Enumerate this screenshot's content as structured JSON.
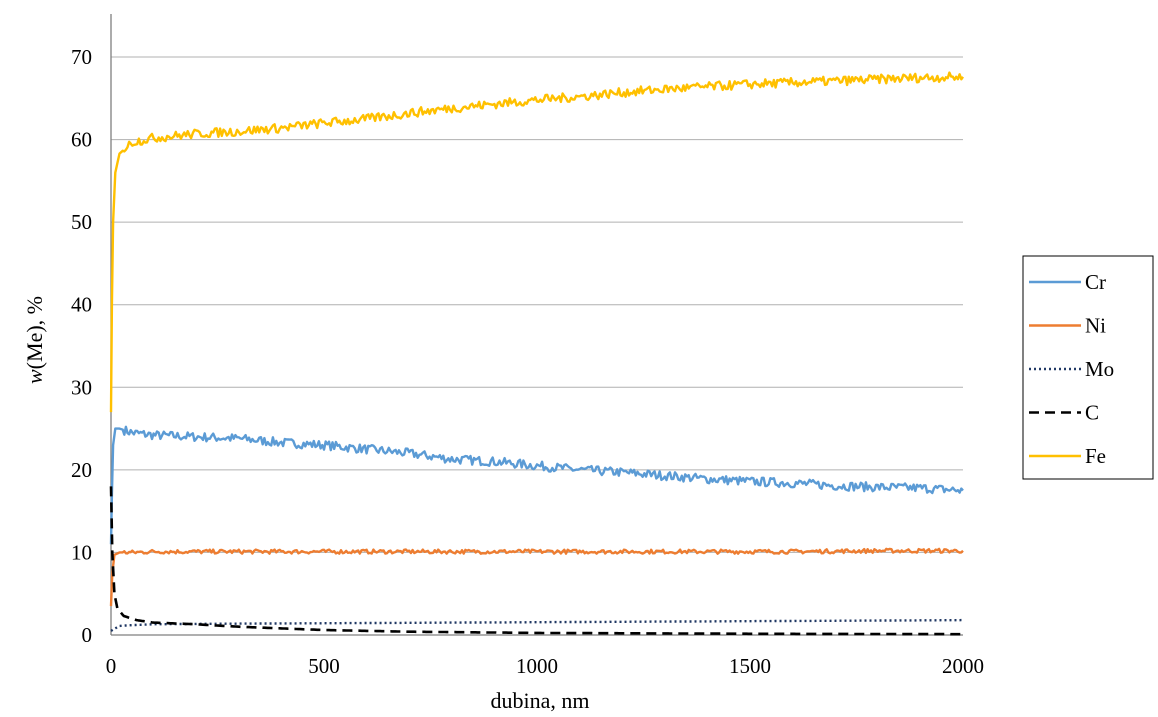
{
  "chart_data": {
    "type": "line",
    "title": "",
    "xlabel": "dubina, nm",
    "ylabel_italic": "w",
    "ylabel_rest": "(Me), %",
    "xlim": [
      0,
      2000
    ],
    "ylim": [
      0,
      70
    ],
    "x_ticks": [
      0,
      500,
      1000,
      1500,
      2000
    ],
    "y_ticks": [
      0,
      10,
      20,
      30,
      40,
      50,
      60,
      70
    ],
    "grid": "horizontal",
    "legend_position": "right",
    "series": [
      {
        "name": "Cr",
        "color": "#5b9bd5",
        "dash": "solid",
        "points": [
          [
            0,
            11
          ],
          [
            2,
            17
          ],
          [
            5,
            23
          ],
          [
            10,
            25
          ],
          [
            20,
            25
          ],
          [
            50,
            24.5
          ],
          [
            100,
            24.2
          ],
          [
            200,
            24
          ],
          [
            300,
            23.8
          ],
          [
            400,
            23.3
          ],
          [
            500,
            23
          ],
          [
            600,
            22.5
          ],
          [
            700,
            22
          ],
          [
            800,
            21.3
          ],
          [
            900,
            21
          ],
          [
            1000,
            20.5
          ],
          [
            1100,
            20
          ],
          [
            1200,
            19.7
          ],
          [
            1300,
            19.3
          ],
          [
            1400,
            18.9
          ],
          [
            1500,
            18.6
          ],
          [
            1600,
            18.4
          ],
          [
            1700,
            18.1
          ],
          [
            1800,
            17.9
          ],
          [
            1900,
            17.8
          ],
          [
            2000,
            17.5
          ]
        ]
      },
      {
        "name": "Ni",
        "color": "#ed7d31",
        "dash": "solid",
        "points": [
          [
            0,
            3.5
          ],
          [
            3,
            7.5
          ],
          [
            8,
            9.7
          ],
          [
            20,
            10
          ],
          [
            50,
            10
          ],
          [
            100,
            10.1
          ],
          [
            200,
            10.1
          ],
          [
            400,
            10.1
          ],
          [
            600,
            10.1
          ],
          [
            800,
            10.1
          ],
          [
            1000,
            10.1
          ],
          [
            1200,
            10.1
          ],
          [
            1400,
            10.1
          ],
          [
            1600,
            10.1
          ],
          [
            1800,
            10.2
          ],
          [
            2000,
            10.2
          ]
        ]
      },
      {
        "name": "Mo",
        "color": "#203864",
        "dash": "dotted",
        "points": [
          [
            0,
            0.5
          ],
          [
            20,
            1.1
          ],
          [
            50,
            1.2
          ],
          [
            100,
            1.3
          ],
          [
            200,
            1.35
          ],
          [
            400,
            1.4
          ],
          [
            600,
            1.45
          ],
          [
            800,
            1.5
          ],
          [
            1000,
            1.55
          ],
          [
            1200,
            1.6
          ],
          [
            1400,
            1.65
          ],
          [
            1600,
            1.7
          ],
          [
            1800,
            1.75
          ],
          [
            2000,
            1.8
          ]
        ]
      },
      {
        "name": "C",
        "color": "#000000",
        "dash": "dashed",
        "points": [
          [
            0,
            18
          ],
          [
            3,
            10
          ],
          [
            8,
            5
          ],
          [
            15,
            3.2
          ],
          [
            30,
            2.3
          ],
          [
            60,
            1.8
          ],
          [
            100,
            1.5
          ],
          [
            200,
            1.3
          ],
          [
            300,
            1
          ],
          [
            400,
            0.8
          ],
          [
            500,
            0.6
          ],
          [
            700,
            0.4
          ],
          [
            1000,
            0.25
          ],
          [
            1500,
            0.15
          ],
          [
            2000,
            0.1
          ]
        ]
      },
      {
        "name": "Fe",
        "color": "#ffc000",
        "dash": "solid",
        "points": [
          [
            0,
            27
          ],
          [
            2,
            40
          ],
          [
            5,
            50
          ],
          [
            10,
            56
          ],
          [
            20,
            58.3
          ],
          [
            50,
            59.7
          ],
          [
            100,
            60.2
          ],
          [
            200,
            60.7
          ],
          [
            300,
            61
          ],
          [
            400,
            61.4
          ],
          [
            500,
            62
          ],
          [
            600,
            62.5
          ],
          [
            700,
            63.2
          ],
          [
            800,
            63.8
          ],
          [
            900,
            64.3
          ],
          [
            1000,
            64.8
          ],
          [
            1100,
            65.2
          ],
          [
            1200,
            65.7
          ],
          [
            1300,
            66.1
          ],
          [
            1400,
            66.4
          ],
          [
            1500,
            66.7
          ],
          [
            1600,
            66.9
          ],
          [
            1700,
            67.1
          ],
          [
            1800,
            67.3
          ],
          [
            1900,
            67.5
          ],
          [
            2000,
            67.6
          ]
        ]
      }
    ]
  }
}
